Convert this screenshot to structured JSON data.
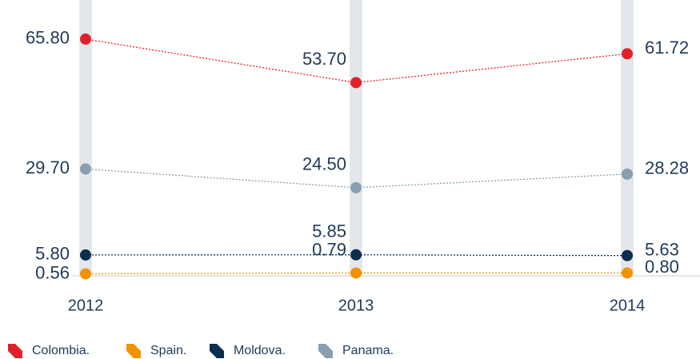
{
  "chart_data": {
    "type": "line",
    "x": [
      "2012",
      "2013",
      "2014"
    ],
    "series": [
      {
        "name": "Colombia.",
        "color": "#e3202a",
        "values": [
          65.8,
          53.7,
          61.72
        ],
        "value_labels": [
          "65.80",
          "53.70",
          "61.72"
        ]
      },
      {
        "name": "Spain.",
        "color": "#f39200",
        "values": [
          0.56,
          0.79,
          0.8
        ],
        "value_labels": [
          "0.56",
          "0.79",
          "0.80"
        ]
      },
      {
        "name": "Moldova.",
        "color": "#0b2d4f",
        "values": [
          5.8,
          5.85,
          5.63
        ],
        "value_labels": [
          "5.80",
          "5.85",
          "5.63"
        ]
      },
      {
        "name": "Panama.",
        "color": "#869fb1",
        "values": [
          29.7,
          24.5,
          28.28
        ],
        "value_labels": [
          "29.70",
          "24.50",
          "28.28"
        ]
      }
    ],
    "ylim": [
      0,
      70
    ]
  }
}
